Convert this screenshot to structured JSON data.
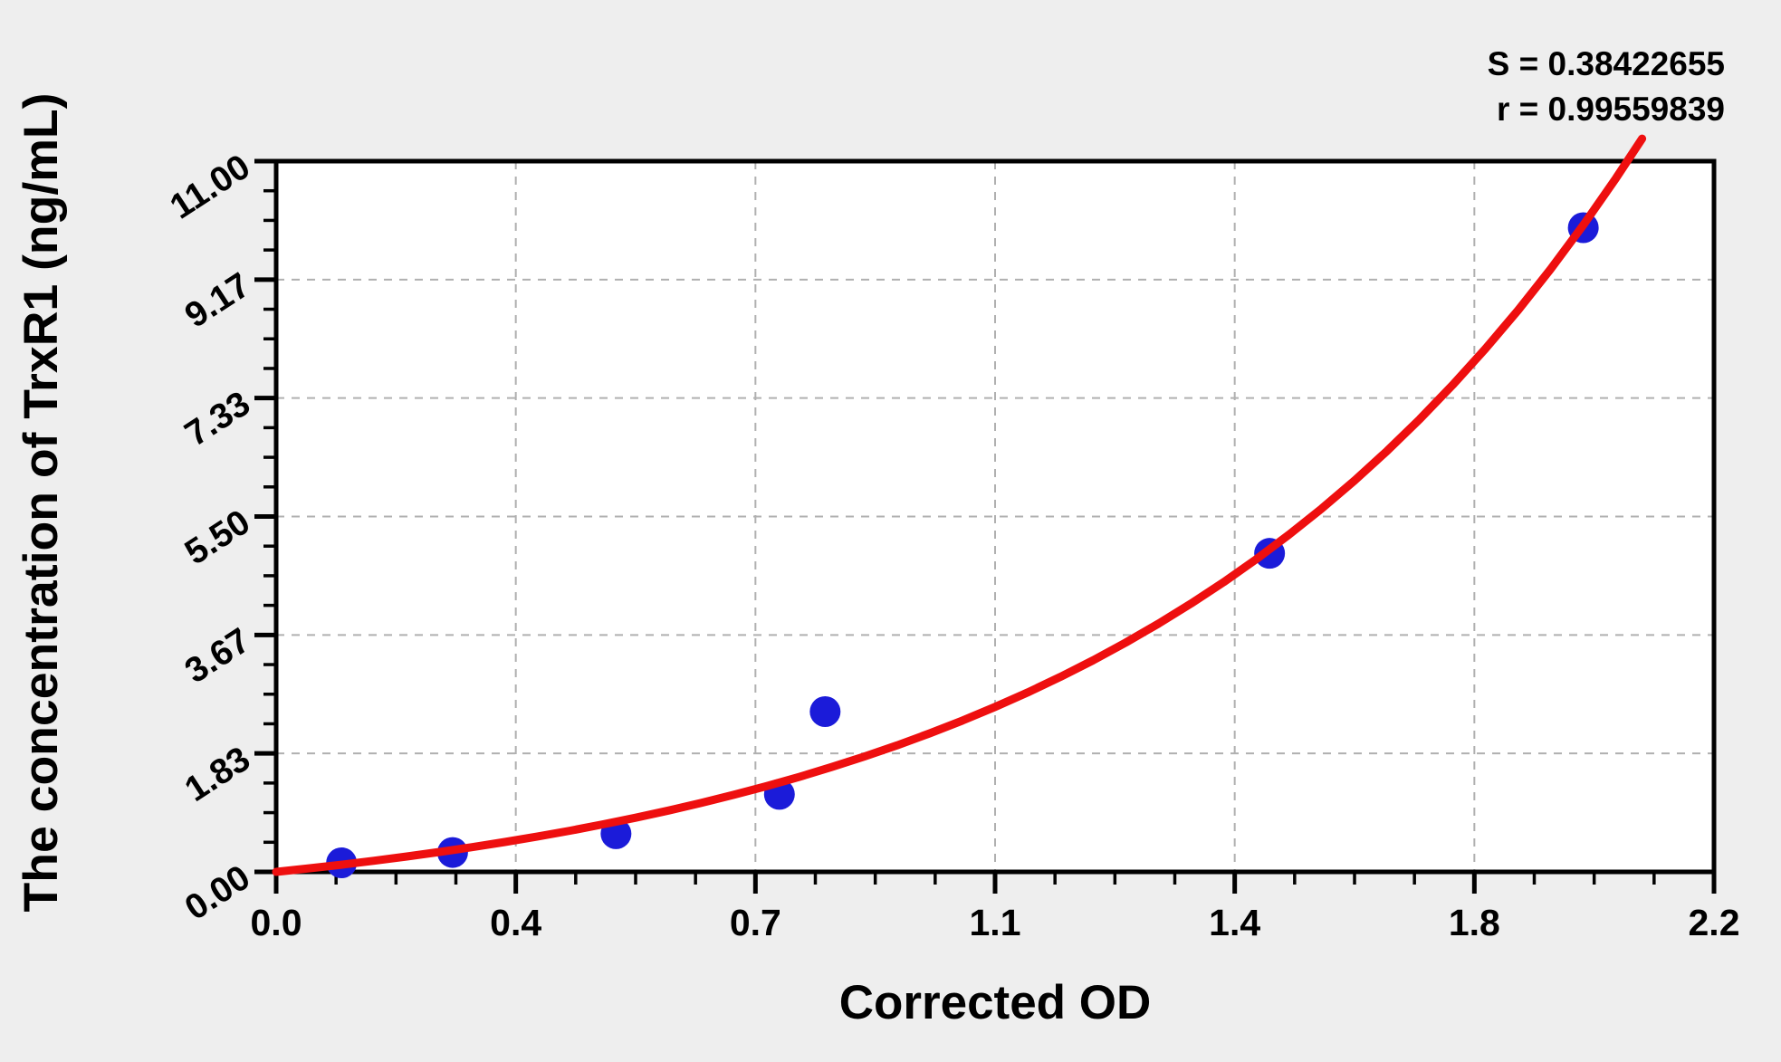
{
  "stats": {
    "s_label": "S = 0.38422655",
    "r_label": "r = 0.99559839"
  },
  "chart_data": {
    "type": "scatter",
    "title": "",
    "xlabel": "Corrected OD",
    "ylabel": "The concentration of TrxR1 (ng/mL)",
    "xlim": [
      0.0,
      2.2
    ],
    "ylim": [
      0.0,
      11.0
    ],
    "x_major_tick_values": [
      0,
      0.36667,
      0.73333,
      1.1,
      1.46667,
      1.83333,
      2.2
    ],
    "x_tick_labels": [
      "0.0",
      "0.4",
      "0.7",
      "1.1",
      "1.4",
      "1.8",
      "2.2"
    ],
    "y_major_tick_values": [
      0,
      1.83333,
      3.66667,
      5.5,
      7.33333,
      9.16667,
      11
    ],
    "y_tick_labels": [
      "0.00",
      "1.83",
      "3.67",
      "5.50",
      "7.33",
      "9.17",
      "11.00"
    ],
    "minor_divisions_per_major": 4,
    "grid": "dashed at major ticks",
    "legend": "none",
    "points": [
      [
        0.1,
        0.14
      ],
      [
        0.27,
        0.3
      ],
      [
        0.52,
        0.59
      ],
      [
        0.77,
        1.2
      ],
      [
        0.84,
        2.48
      ],
      [
        1.52,
        4.93
      ],
      [
        2.0,
        9.97
      ]
    ],
    "fit_curve_samples": [
      [
        0,
        0
      ],
      [
        0.05,
        0.054
      ],
      [
        0.1,
        0.111
      ],
      [
        0.15,
        0.173
      ],
      [
        0.2,
        0.238
      ],
      [
        0.25,
        0.308
      ],
      [
        0.3,
        0.383
      ],
      [
        0.35,
        0.463
      ],
      [
        0.4,
        0.548
      ],
      [
        0.45,
        0.638
      ],
      [
        0.5,
        0.735
      ],
      [
        0.55,
        0.838
      ],
      [
        0.6,
        0.949
      ],
      [
        0.65,
        1.066
      ],
      [
        0.7,
        1.192
      ],
      [
        0.75,
        1.326
      ],
      [
        0.8,
        1.469
      ],
      [
        0.85,
        1.622
      ],
      [
        0.9,
        1.785
      ],
      [
        0.95,
        1.958
      ],
      [
        1.0,
        2.144
      ],
      [
        1.05,
        2.342
      ],
      [
        1.1,
        2.553
      ],
      [
        1.15,
        2.778
      ],
      [
        1.2,
        3.019
      ],
      [
        1.25,
        3.275
      ],
      [
        1.3,
        3.549
      ],
      [
        1.35,
        3.842
      ],
      [
        1.4,
        4.153
      ],
      [
        1.45,
        4.486
      ],
      [
        1.5,
        4.841
      ],
      [
        1.55,
        5.221
      ],
      [
        1.6,
        5.625
      ],
      [
        1.65,
        6.057
      ],
      [
        1.7,
        6.517
      ],
      [
        1.75,
        7.009
      ],
      [
        1.8,
        7.534
      ],
      [
        1.85,
        8.094
      ],
      [
        1.9,
        8.691
      ],
      [
        1.95,
        9.328
      ],
      [
        2.0,
        10.009
      ],
      [
        2.05,
        10.735
      ],
      [
        2.09,
        11.349
      ]
    ],
    "colors": {
      "point": "#1b1bd9",
      "curve": "#ee0f0f",
      "grid": "#b0b0b0",
      "frame": "#000000",
      "plot_bg": "#ffffff",
      "page_bg": "#eeeeee"
    }
  }
}
